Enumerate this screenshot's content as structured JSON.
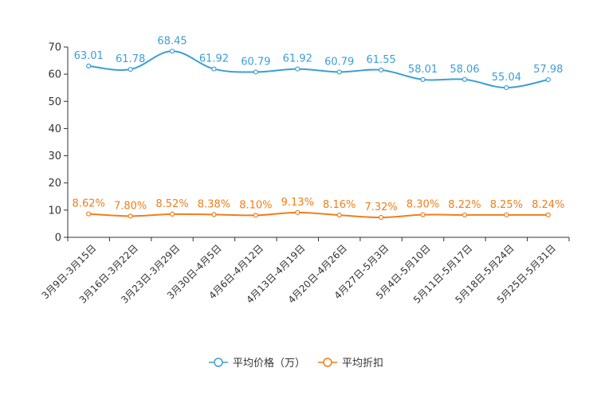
{
  "chart_data": {
    "type": "line",
    "title": "",
    "xlabel": "",
    "ylabel": "",
    "ylim": [
      0,
      70
    ],
    "yticks": [
      0,
      10,
      20,
      30,
      40,
      50,
      60,
      70
    ],
    "grid": false,
    "legend_position": "bottom",
    "categories": [
      "3月9日-3月15日",
      "3月16日-3月22日",
      "3月23日-3月29日",
      "3月30日-4月5日",
      "4月6日-4月12日",
      "4月13日-4月19日",
      "4月20日-4月26日",
      "4月27日-5月3日",
      "5月4日-5月10日",
      "5月11日-5月17日",
      "5月18日-5月24日",
      "5月25日-5月31日"
    ],
    "series": [
      {
        "name": "平均价格（万）",
        "color": "#3a9fd6",
        "values": [
          63.01,
          61.78,
          68.45,
          61.92,
          60.79,
          61.92,
          60.79,
          61.55,
          58.01,
          58.06,
          55.04,
          57.98
        ],
        "labels": [
          "63.01",
          "61.78",
          "68.45",
          "61.92",
          "60.79",
          "61.92",
          "60.79",
          "61.55",
          "58.01",
          "58.06",
          "55.04",
          "57.98"
        ]
      },
      {
        "name": "平均折扣",
        "color": "#f07e1b",
        "values": [
          8.62,
          7.8,
          8.52,
          8.38,
          8.1,
          9.13,
          8.16,
          7.32,
          8.3,
          8.22,
          8.25,
          8.24
        ],
        "labels": [
          "8.62%",
          "7.80%",
          "8.52%",
          "8.38%",
          "8.10%",
          "9.13%",
          "8.16%",
          "7.32%",
          "8.30%",
          "8.22%",
          "8.25%",
          "8.24%"
        ]
      }
    ]
  }
}
